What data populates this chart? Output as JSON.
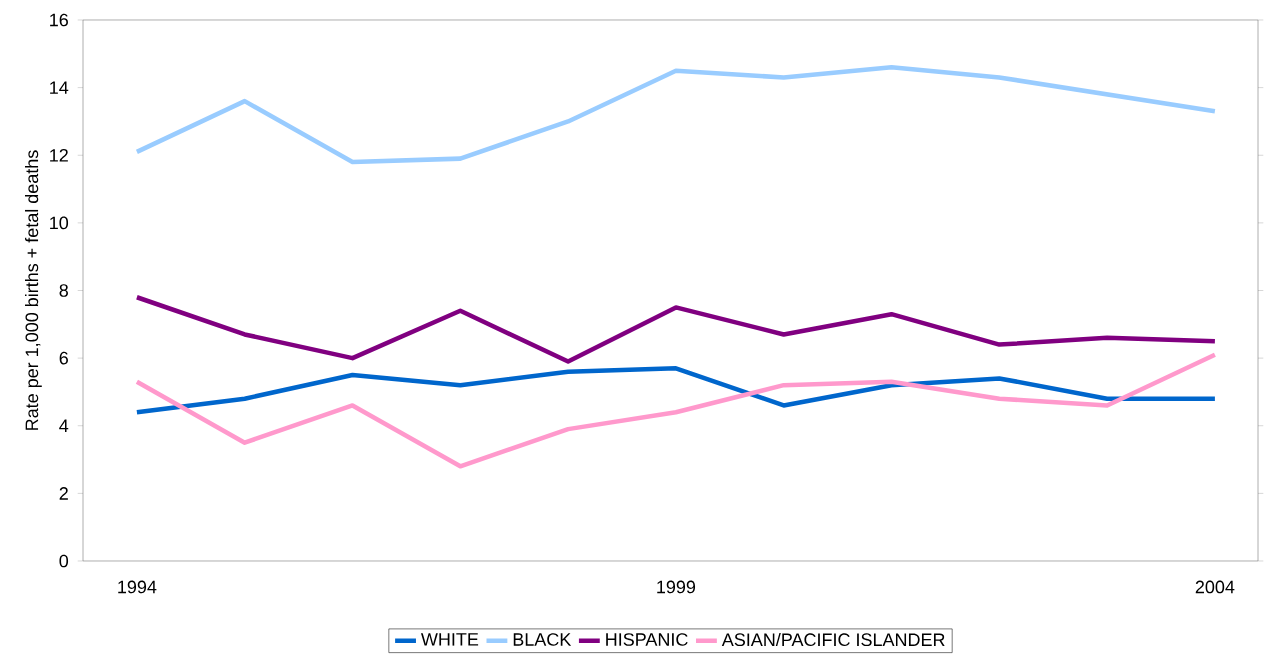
{
  "chart_data": {
    "type": "line",
    "ylabel": "Rate per 1,000 births + fetal deaths",
    "x": [
      1994,
      1995,
      1996,
      1997,
      1998,
      1999,
      2000,
      2001,
      2002,
      2003,
      2004
    ],
    "xlim": [
      1993.5,
      2004.4
    ],
    "xticks": [
      1994,
      1999,
      2004
    ],
    "ylim": [
      0,
      16
    ],
    "yticks": [
      0,
      2,
      4,
      6,
      8,
      10,
      12,
      14,
      16
    ],
    "grid": false,
    "legend": "bottom",
    "marker": "none",
    "line_style": "solid",
    "series": [
      {
        "name": "WHITE",
        "color": "#0066cc",
        "values": [
          4.4,
          4.8,
          5.5,
          5.2,
          5.6,
          5.7,
          4.6,
          5.2,
          5.4,
          4.8,
          4.8
        ]
      },
      {
        "name": "BLACK",
        "color": "#99ccff",
        "values": [
          12.1,
          13.6,
          11.8,
          11.9,
          13.0,
          14.5,
          14.3,
          14.6,
          14.3,
          13.8,
          13.3
        ]
      },
      {
        "name": "HISPANIC",
        "color": "#800080",
        "values": [
          7.8,
          6.7,
          6.0,
          7.4,
          5.9,
          7.5,
          6.7,
          7.3,
          6.4,
          6.6,
          6.5
        ]
      },
      {
        "name": "ASIAN/PACIFIC ISLANDER",
        "color": "#ff99cc",
        "values": [
          5.3,
          3.5,
          4.6,
          2.8,
          3.9,
          4.4,
          5.2,
          5.3,
          4.8,
          4.6,
          6.1
        ]
      }
    ]
  }
}
